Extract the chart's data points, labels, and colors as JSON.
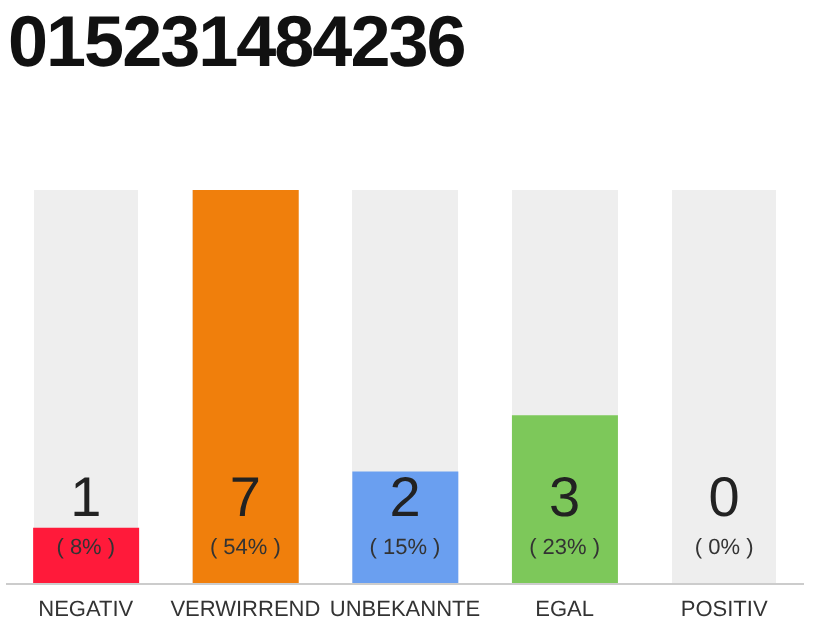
{
  "chart_data": {
    "type": "bar",
    "title": "015231484236",
    "categories": [
      "NEGATIV",
      "VERWIRREND",
      "UNBEKANNTE",
      "EGAL",
      "POSITIV"
    ],
    "values": [
      1,
      7,
      2,
      3,
      0
    ],
    "data_labels": true,
    "annotations": [
      "( 8% )",
      "( 54% )",
      "( 15% )",
      "( 23% )",
      "( 0% )"
    ],
    "colors": [
      "#ff1a3a",
      "#f07f0c",
      "#6a9ff0",
      "#7dc85a",
      "#a8a8a8"
    ]
  }
}
